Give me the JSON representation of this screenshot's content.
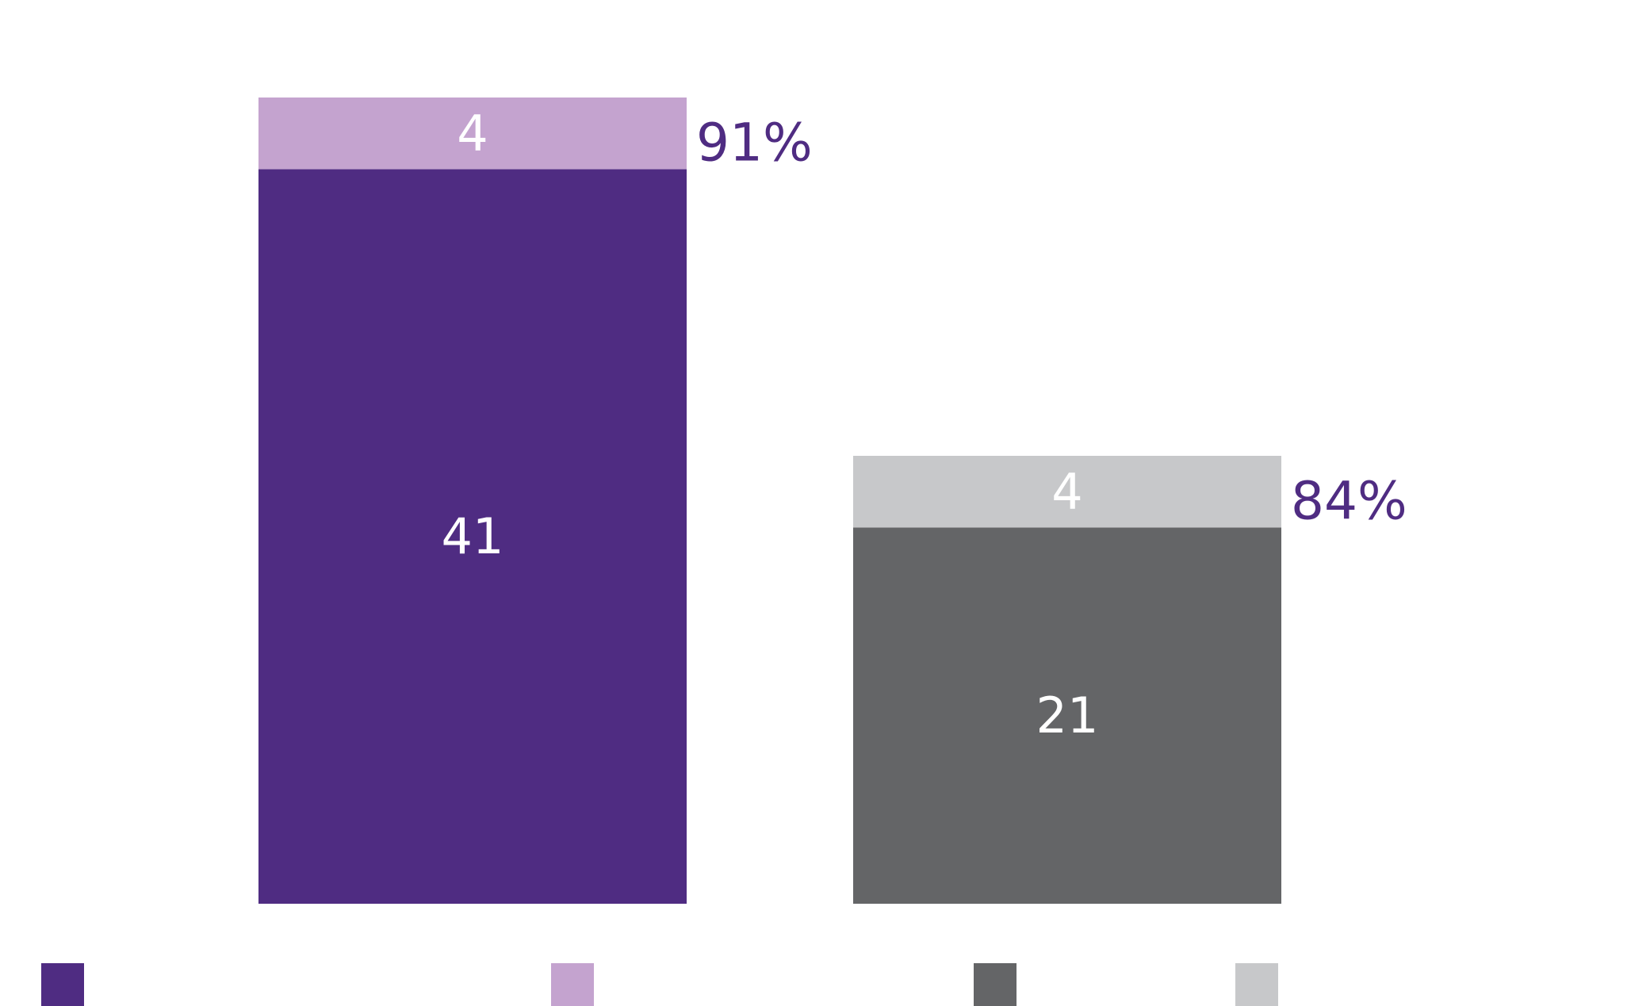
{
  "chart_data": {
    "type": "bar",
    "stacked": true,
    "categories": [
      "",
      ""
    ],
    "bars": [
      {
        "segments": [
          {
            "value": 41,
            "label": "41",
            "color": "#4f2c82"
          },
          {
            "value": 4,
            "label": "4",
            "color": "#c4a3cf"
          }
        ],
        "total_label": "91%"
      },
      {
        "segments": [
          {
            "value": 21,
            "label": "21",
            "color": "#646567"
          },
          {
            "value": 4,
            "label": "4",
            "color": "#c7c8ca"
          }
        ],
        "total_label": "84%"
      }
    ],
    "legend": {
      "placement": "bottom",
      "items": [
        {
          "name": "",
          "color": "#4f2c82"
        },
        {
          "name": "",
          "color": "#c4a3cf"
        },
        {
          "name": "",
          "color": "#646567"
        },
        {
          "name": "",
          "color": "#c7c8ca"
        }
      ]
    },
    "ylim": [
      0,
      45
    ],
    "grid": false,
    "title": "",
    "xlabel": "",
    "ylabel": "",
    "colors": {
      "total_label": "#4f2c82"
    }
  }
}
